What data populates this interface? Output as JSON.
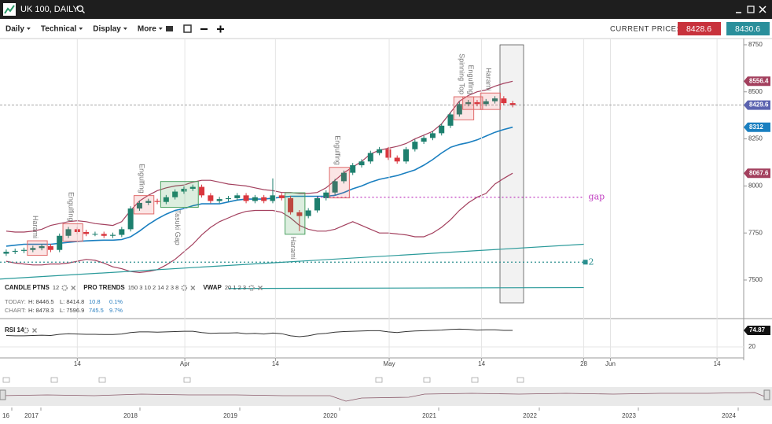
{
  "header": {
    "title": "UK 100, DAILY"
  },
  "toolbar": {
    "menus": [
      "Daily",
      "Technical",
      "Display",
      "More"
    ],
    "current_price_label": "CURRENT PRICE:",
    "bid": "8428.6",
    "ask": "8430.6",
    "bid_color": "#c8323c",
    "ask_color": "#2a8f9b"
  },
  "chart_data": {
    "type": "candlestick",
    "up_color": "#1d7f6e",
    "down_color": "#d9363e",
    "open": [
      7640,
      7650,
      7655,
      7660,
      7670,
      7680,
      7660,
      7735,
      7770,
      7755,
      7745,
      7745,
      7735,
      7740,
      7770,
      7880,
      7910,
      7920,
      7915,
      7940,
      7970,
      7985,
      7995,
      7950,
      7920,
      7930,
      7935,
      7950,
      7920,
      7940,
      7920,
      7950,
      7935,
      7860,
      7840,
      7870,
      7935,
      7965,
      8025,
      8070,
      8110,
      8130,
      8175,
      8195,
      8150,
      8130,
      8195,
      8235,
      8255,
      8280,
      8320,
      8380,
      8435,
      8445,
      8435,
      8450,
      8465,
      8440
    ],
    "high": [
      7662,
      7667,
      7672,
      7682,
      7692,
      7692,
      7747,
      7782,
      7782,
      7767,
      7757,
      7757,
      7752,
      7782,
      7892,
      7922,
      7932,
      7932,
      7952,
      7982,
      7997,
      8007,
      8007,
      7962,
      7942,
      7947,
      7962,
      7962,
      7952,
      7952,
      8040,
      7962,
      7947,
      7872,
      7882,
      7947,
      7977,
      8037,
      8082,
      8122,
      8142,
      8187,
      8207,
      8207,
      8162,
      8207,
      8247,
      8267,
      8292,
      8332,
      8392,
      8447,
      8457,
      8457,
      8462,
      8477,
      8477,
      8452
    ],
    "low": [
      7628,
      7638,
      7643,
      7648,
      7658,
      7648,
      7648,
      7723,
      7743,
      7733,
      7733,
      7723,
      7723,
      7728,
      7758,
      7868,
      7898,
      7903,
      7903,
      7928,
      7958,
      7973,
      7938,
      7908,
      7908,
      7918,
      7923,
      7908,
      7908,
      7908,
      7908,
      7923,
      7848,
      7760,
      7828,
      7858,
      7923,
      7953,
      8013,
      8058,
      8098,
      8118,
      8163,
      8138,
      8118,
      8118,
      8183,
      8223,
      8243,
      8268,
      8308,
      8368,
      8423,
      8423,
      8423,
      8438,
      8428,
      8417.6
    ],
    "close": [
      7650,
      7655,
      7660,
      7670,
      7680,
      7660,
      7735,
      7770,
      7755,
      7745,
      7745,
      7735,
      7740,
      7770,
      7880,
      7910,
      7920,
      7915,
      7940,
      7970,
      7985,
      7995,
      7950,
      7920,
      7930,
      7935,
      7950,
      7920,
      7940,
      7920,
      7950,
      7935,
      7860,
      7840,
      7870,
      7935,
      7965,
      8025,
      8070,
      8110,
      8130,
      8175,
      8195,
      8150,
      8130,
      8195,
      8235,
      8255,
      8280,
      8320,
      8380,
      8435,
      8445,
      8435,
      8450,
      8465,
      8440,
      8429.6
    ],
    "close_tag_color": "#5b63b0",
    "overlays": [
      {
        "color": "#a3405e",
        "values": [
          7760,
          7755,
          7755,
          7760,
          7770,
          7790,
          7800,
          7810,
          7815,
          7810,
          7800,
          7795,
          7790,
          7810,
          7870,
          7920,
          7950,
          7975,
          7990,
          8000,
          8005,
          8020,
          8030,
          8030,
          8020,
          8010,
          8005,
          8000,
          7990,
          7980,
          7975,
          7965,
          7965,
          7960,
          7960,
          7965,
          7990,
          8030,
          8070,
          8100,
          8130,
          8170,
          8190,
          8200,
          8210,
          8225,
          8250,
          8270,
          8290,
          8330,
          8390,
          8450,
          8480,
          8500,
          8510,
          8530,
          8545,
          8556.4
        ]
      },
      {
        "color": "#1a7fc0",
        "values": [
          7680,
          7685,
          7690,
          7690,
          7690,
          7690,
          7695,
          7700,
          7705,
          7708,
          7710,
          7712,
          7712,
          7715,
          7730,
          7760,
          7795,
          7825,
          7850,
          7870,
          7880,
          7895,
          7905,
          7905,
          7905,
          7915,
          7925,
          7930,
          7930,
          7930,
          7935,
          7940,
          7945,
          7945,
          7945,
          7945,
          7945,
          7950,
          7965,
          7985,
          8000,
          8020,
          8035,
          8045,
          8055,
          8070,
          8085,
          8110,
          8140,
          8175,
          8205,
          8220,
          8230,
          8245,
          8265,
          8285,
          8300,
          8312
        ]
      },
      {
        "color": "#a3405e",
        "values": [
          7600,
          7590,
          7585,
          7580,
          7580,
          7585,
          7585,
          7590,
          7600,
          7610,
          7605,
          7590,
          7570,
          7560,
          7545,
          7540,
          7545,
          7555,
          7580,
          7610,
          7650,
          7690,
          7740,
          7780,
          7810,
          7830,
          7850,
          7865,
          7870,
          7870,
          7870,
          7860,
          7830,
          7790,
          7770,
          7760,
          7760,
          7770,
          7790,
          7810,
          7790,
          7770,
          7750,
          7750,
          7745,
          7740,
          7730,
          7730,
          7750,
          7780,
          7820,
          7870,
          7910,
          7940,
          7960,
          8010,
          8040,
          8067.6
        ]
      }
    ],
    "ylim": [
      7316,
      8779
    ],
    "yticks": [
      7500,
      7750,
      8000,
      8250,
      8500,
      8750
    ],
    "xlim": [
      -0.7,
      83
    ],
    "xticks": [
      {
        "value": 8,
        "label": "14"
      },
      {
        "value": 20.1,
        "label": "Apr"
      },
      {
        "value": 30.3,
        "label": "14"
      },
      {
        "value": 43.1,
        "label": "May"
      },
      {
        "value": 53.5,
        "label": "14"
      },
      {
        "value": 65,
        "label": "28"
      },
      {
        "value": 68,
        "label": "Jun"
      },
      {
        "value": 80,
        "label": "14"
      }
    ],
    "grid": true,
    "levels": [
      {
        "label": "gap",
        "value": 7940,
        "from": 35,
        "to": 65,
        "color": "#c03cc0"
      },
      {
        "label": "2",
        "value": 7595,
        "from": -0.7,
        "to": 65,
        "color": "#2a8f8f"
      }
    ],
    "trendlines": [
      {
        "x": [
          -0.7,
          65
        ],
        "values": [
          7505,
          7690
        ],
        "color": "#2a9a9a"
      },
      {
        "x": [
          25,
          65
        ],
        "values": [
          7455,
          7460
        ],
        "color": "#2a9a9a"
      }
    ],
    "patterns": [
      {
        "label": "Harami",
        "from": 3,
        "to": 4,
        "color": "red",
        "position": "above"
      },
      {
        "label": "Engulfing",
        "from": 7,
        "to": 8,
        "color": "red",
        "position": "above"
      },
      {
        "label": "Engulfing",
        "from": 15,
        "to": 16,
        "color": "red",
        "position": "above"
      },
      {
        "label": "Tasuki Gap",
        "from": 18,
        "to": 21,
        "color": "green",
        "position": "below"
      },
      {
        "label": "Harami",
        "from": 32,
        "to": 33,
        "color": "green",
        "position": "below"
      },
      {
        "label": "Engulfing",
        "from": 37,
        "to": 38,
        "color": "red",
        "position": "above"
      },
      {
        "label": "Spinning Top",
        "from": 51,
        "to": 52,
        "color": "red",
        "position": "above"
      },
      {
        "label": "Engulfing",
        "from": 52,
        "to": 53,
        "color": "red",
        "position": "above"
      },
      {
        "label": "Harami",
        "from": 54,
        "to": 55,
        "color": "red",
        "position": "above"
      }
    ]
  },
  "indicators": {
    "items": [
      {
        "name": "CANDLE PTNS",
        "params": "12"
      },
      {
        "name": "PRO TRENDS",
        "params": "150 3 10 2 14 2 3 8"
      },
      {
        "name": "VWAP",
        "params": "20 1 2 3"
      }
    ],
    "stats": [
      [
        "TODAY:",
        "H: 8446.5",
        "L: 8414.8",
        "10.8",
        "0.1%"
      ],
      [
        "CHART:",
        "H: 8478.3",
        "L: 7596.9",
        "745.5",
        "9.7%"
      ]
    ]
  },
  "rsi": {
    "type": "line",
    "title": "RSI 14",
    "color": "#333333",
    "values": [
      58,
      57,
      57,
      58,
      59,
      58,
      62,
      64,
      63,
      62,
      62,
      61,
      61,
      63,
      68,
      70,
      70,
      69,
      70,
      71,
      72,
      72,
      68,
      65,
      66,
      66,
      67,
      64,
      65,
      63,
      66,
      64,
      57,
      54,
      57,
      63,
      65,
      69,
      71,
      72,
      73,
      74,
      74,
      70,
      68,
      71,
      73,
      74,
      75,
      76,
      78,
      79,
      78,
      76,
      77,
      77,
      75,
      74.87
    ],
    "ylim": [
      0,
      100
    ],
    "yticks": [
      20
    ]
  },
  "navigator": {
    "labels": [
      "16",
      "2017",
      "2018",
      "2019",
      "2020",
      "2021",
      "2022",
      "2023",
      "2024"
    ]
  }
}
